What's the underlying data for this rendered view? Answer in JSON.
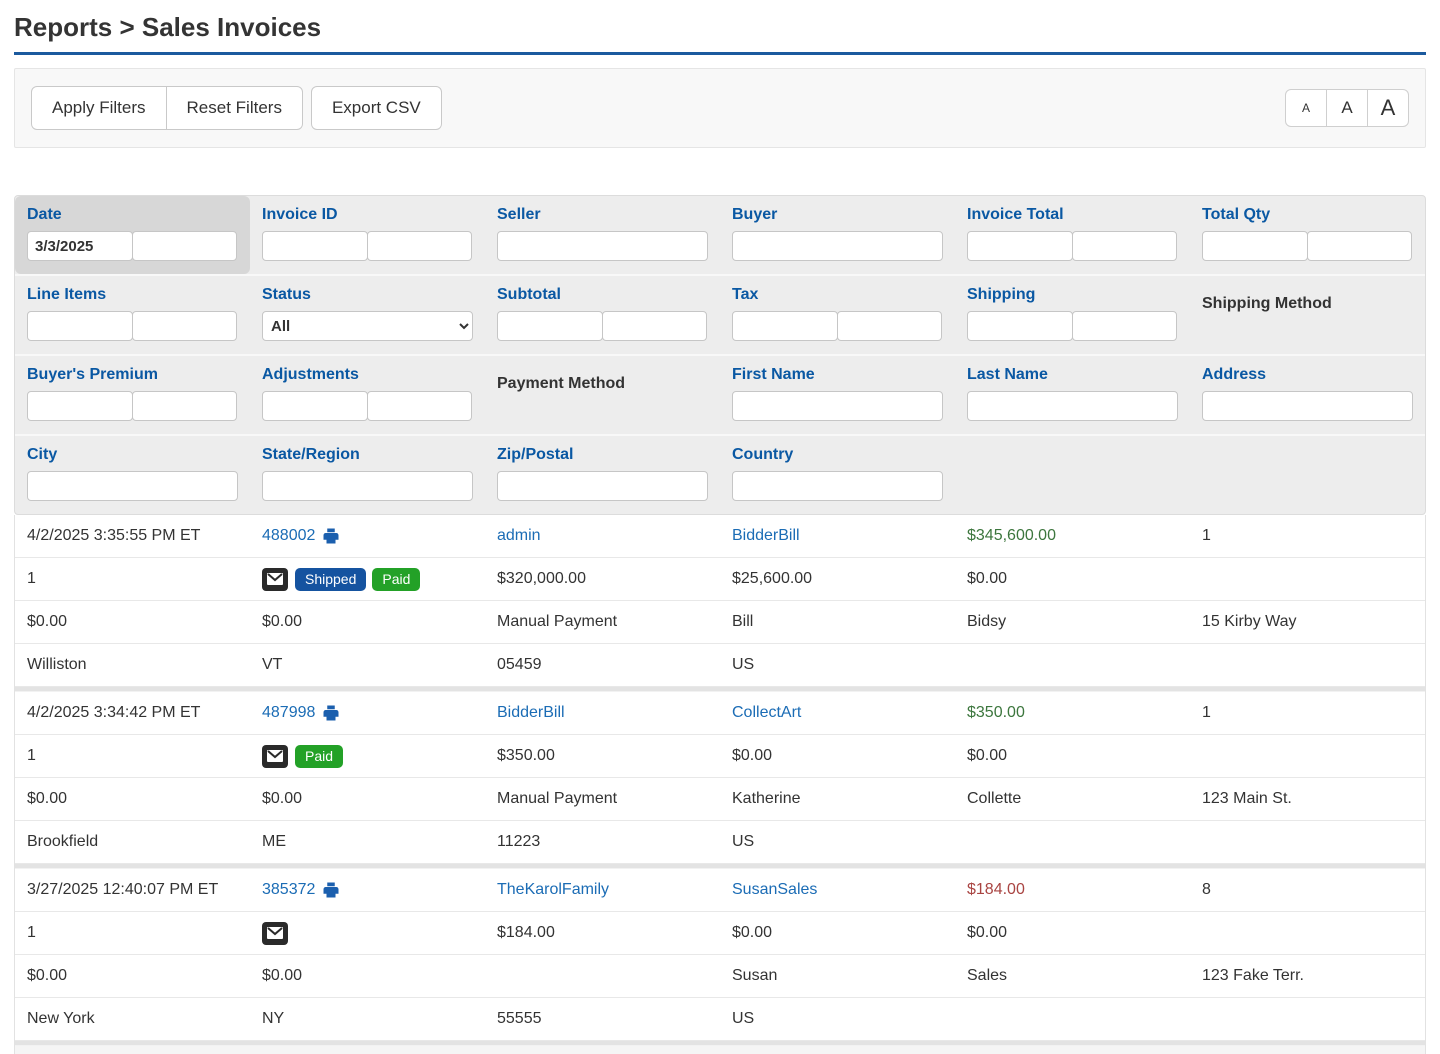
{
  "page": {
    "title": "Reports > Sales Invoices"
  },
  "colors": {
    "accent_blue": "#1b5a9e",
    "label_blue": "#0a58a3",
    "link_blue": "#1b6cb5",
    "money_green": "#3c763d",
    "money_red": "#a94442",
    "badge_blue": "#1553a0",
    "badge_green": "#23a127"
  },
  "toolbar": {
    "apply": "Apply Filters",
    "reset": "Reset Filters",
    "export": "Export CSV",
    "font_small": "A",
    "font_medium": "A",
    "font_large": "A"
  },
  "filters": {
    "date": {
      "label": "Date",
      "from": "3/3/2025",
      "to": ""
    },
    "invoice_id": {
      "label": "Invoice ID"
    },
    "seller": {
      "label": "Seller"
    },
    "buyer": {
      "label": "Buyer"
    },
    "invoice_total": {
      "label": "Invoice Total"
    },
    "total_qty": {
      "label": "Total Qty"
    },
    "line_items": {
      "label": "Line Items"
    },
    "status": {
      "label": "Status",
      "value": "All"
    },
    "subtotal": {
      "label": "Subtotal"
    },
    "tax": {
      "label": "Tax"
    },
    "shipping": {
      "label": "Shipping"
    },
    "shipping_method": {
      "label": "Shipping Method"
    },
    "buyers_premium": {
      "label": "Buyer's Premium"
    },
    "adjustments": {
      "label": "Adjustments"
    },
    "payment_method": {
      "label": "Payment Method"
    },
    "first_name": {
      "label": "First Name"
    },
    "last_name": {
      "label": "Last Name"
    },
    "address": {
      "label": "Address"
    },
    "city": {
      "label": "City"
    },
    "state": {
      "label": "State/Region"
    },
    "zip": {
      "label": "Zip/Postal"
    },
    "country": {
      "label": "Country"
    }
  },
  "invoices": [
    {
      "date": "4/2/2025 3:35:55 PM ET",
      "invoice_id": "488002",
      "seller": "admin",
      "buyer": "BidderBill",
      "invoice_total": "$345,600.00",
      "invoice_total_color": "#3c763d",
      "total_qty": "1",
      "line_items": "1",
      "badges": [
        {
          "label": "Shipped",
          "color": "#1553a0"
        },
        {
          "label": "Paid",
          "color": "#23a127"
        }
      ],
      "subtotal": "$320,000.00",
      "tax": "$25,600.00",
      "shipping": "$0.00",
      "buyers_premium": "$0.00",
      "adjustments": "$0.00",
      "payment_method": "Manual Payment",
      "first_name": "Bill",
      "last_name": "Bidsy",
      "address": "15 Kirby Way",
      "city": "Williston",
      "state": "VT",
      "zip": "05459",
      "country": "US"
    },
    {
      "date": "4/2/2025 3:34:42 PM ET",
      "invoice_id": "487998",
      "seller": "BidderBill",
      "buyer": "CollectArt",
      "invoice_total": "$350.00",
      "invoice_total_color": "#3c763d",
      "total_qty": "1",
      "line_items": "1",
      "badges": [
        {
          "label": "Paid",
          "color": "#23a127"
        }
      ],
      "subtotal": "$350.00",
      "tax": "$0.00",
      "shipping": "$0.00",
      "buyers_premium": "$0.00",
      "adjustments": "$0.00",
      "payment_method": "Manual Payment",
      "first_name": "Katherine",
      "last_name": "Collette",
      "address": "123 Main St.",
      "city": "Brookfield",
      "state": "ME",
      "zip": "11223",
      "country": "US"
    },
    {
      "date": "3/27/2025 12:40:07 PM ET",
      "invoice_id": "385372",
      "seller": "TheKarolFamily",
      "buyer": "SusanSales",
      "invoice_total": "$184.00",
      "invoice_total_color": "#a94442",
      "total_qty": "8",
      "line_items": "1",
      "badges": [],
      "subtotal": "$184.00",
      "tax": "$0.00",
      "shipping": "$0.00",
      "buyers_premium": "$0.00",
      "adjustments": "$0.00",
      "payment_method": "",
      "first_name": "Susan",
      "last_name": "Sales",
      "address": "123 Fake Terr.",
      "city": "New York",
      "state": "NY",
      "zip": "55555",
      "country": "US"
    }
  ]
}
